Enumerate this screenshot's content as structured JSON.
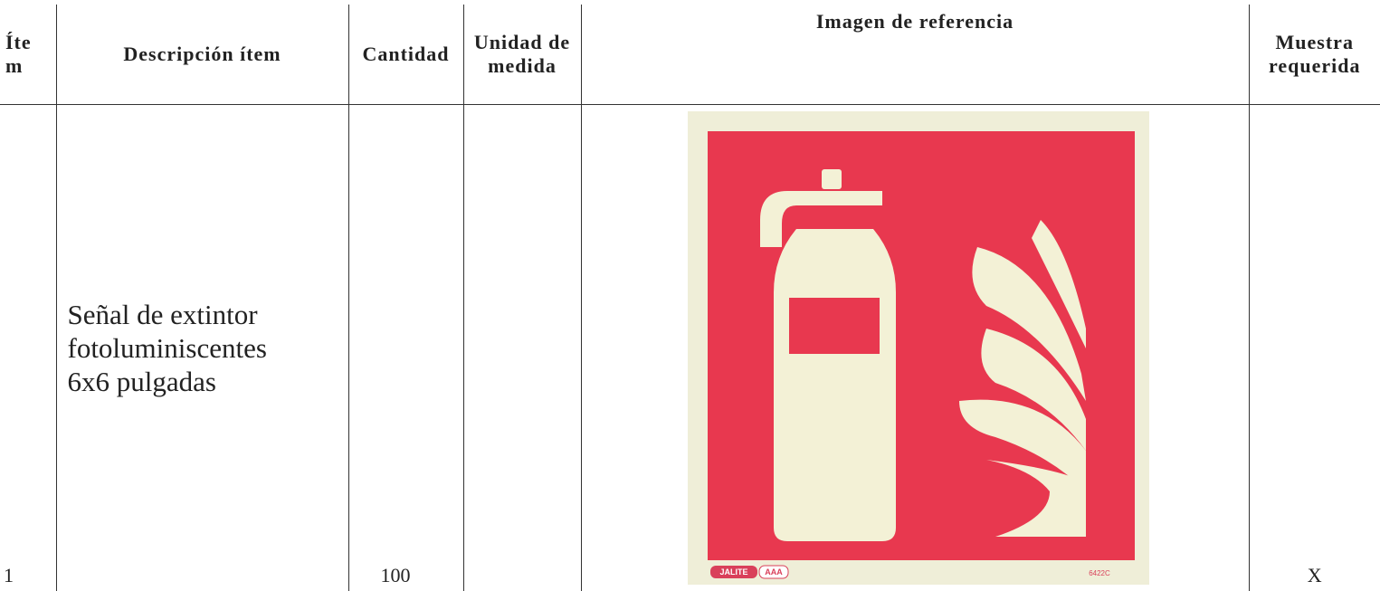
{
  "table": {
    "headers": [
      "Ítem",
      "Descripción ítem",
      "Cantidad",
      "Unidad de medida",
      "Imagen de referencia",
      "Muestra requerida"
    ],
    "rows": [
      [
        "1",
        "Señal de extintor fotoluminiscentes 6x6 pulgadas",
        "100",
        "",
        "",
        "X"
      ]
    ]
  },
  "image": {
    "brand": "JALITE",
    "brand_code": "AAA",
    "code": "6422C"
  }
}
